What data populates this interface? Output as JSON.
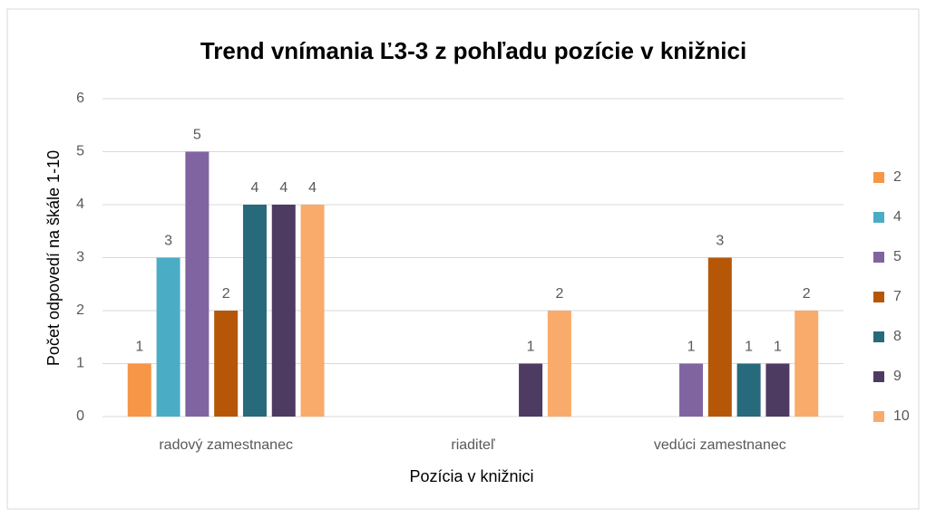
{
  "chart_data": {
    "type": "bar",
    "title": "Trend vnímania Ľ3-3 z pohľadu pozície v knižnici",
    "x_label": "Pozícia v knižnici",
    "y_label": "Počet odpovedí na škále 1-10",
    "categories": [
      "radový zamestnanec",
      "riaditeľ",
      "vedúci zamestnanec"
    ],
    "series": [
      {
        "name": "2",
        "color": "#f79646",
        "values": [
          1,
          null,
          null
        ]
      },
      {
        "name": "4",
        "color": "#4bacc6",
        "values": [
          3,
          null,
          null
        ]
      },
      {
        "name": "5",
        "color": "#8064a2",
        "values": [
          5,
          null,
          1
        ]
      },
      {
        "name": "7",
        "color": "#b65708",
        "values": [
          2,
          null,
          3
        ]
      },
      {
        "name": "8",
        "color": "#276a7c",
        "values": [
          4,
          null,
          1
        ]
      },
      {
        "name": "9",
        "color": "#4d3b62",
        "values": [
          4,
          1,
          1
        ]
      },
      {
        "name": "10",
        "color": "#f9ab6b",
        "values": [
          4,
          2,
          2
        ]
      }
    ],
    "ylim": [
      0,
      6
    ],
    "yticks": [
      0,
      1,
      2,
      3,
      4,
      5,
      6
    ],
    "grid": true,
    "legend": "right",
    "data_labels": true
  }
}
